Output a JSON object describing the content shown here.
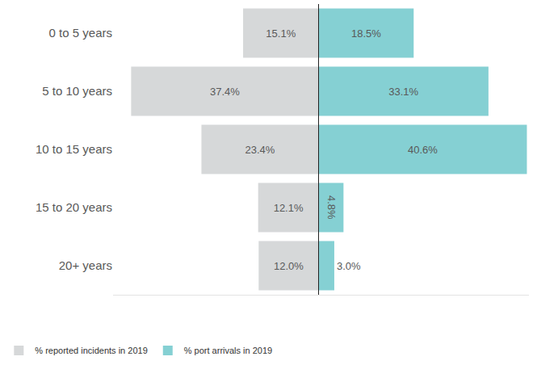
{
  "chart_data": {
    "type": "bar",
    "orientation": "horizontal",
    "categories": [
      "0 to 5 years",
      "5 to 10 years",
      "10 to 15 years",
      "15 to 20 years",
      "20+ years"
    ],
    "series": [
      {
        "name": "% reported incidents in 2019",
        "color": "#d6d8d9",
        "values": [
          15.1,
          37.4,
          23.4,
          12.1,
          12.0
        ],
        "value_labels": [
          "15.1%",
          "37.4%",
          "23.4%",
          "12.1%",
          "12.0%"
        ]
      },
      {
        "name": "% port arrivals in 2019",
        "color": "#85d0d3",
        "values": [
          18.5,
          33.1,
          40.6,
          4.8,
          3.0
        ],
        "value_labels": [
          "18.5%",
          "33.1%",
          "40.6%",
          "4.8%",
          "3.0%"
        ]
      }
    ],
    "xlim": [
      0,
      41
    ],
    "data_labels": true,
    "tick_labels": "y",
    "grid": false,
    "legend": "bottom left"
  }
}
